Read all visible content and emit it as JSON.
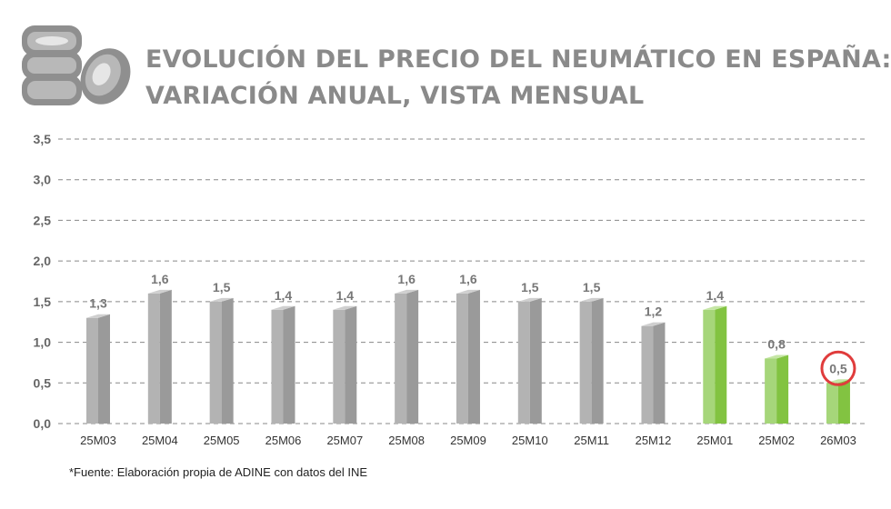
{
  "title": {
    "line1": "EVOLUCIÓN DEL PRECIO DEL NEUMÁTICO EN ESPAÑA:",
    "line2": "VARIACIÓN ANUAL, VISTA MENSUAL"
  },
  "footnote": "*Fuente: Elaboración propia de ADINE con datos del INE",
  "logo_icon": "tire-stack-icon",
  "colors": {
    "gray_front": "#b3b3b3",
    "gray_side": "#9a9a9a",
    "gray_top": "#cfcfcf",
    "green_front": "#a6d67a",
    "green_side": "#82c341",
    "green_top": "#c5e6a5",
    "axis_text": "#666666",
    "label_text": "#777777",
    "grid": "#888888",
    "highlight_circle": "#e03c3c"
  },
  "chart_data": {
    "type": "bar",
    "title": "EVOLUCIÓN DEL PRECIO DEL NEUMÁTICO EN ESPAÑA: VARIACIÓN ANUAL, VISTA MENSUAL",
    "xlabel": "",
    "ylabel": "",
    "categories": [
      "25M03",
      "25M04",
      "25M05",
      "25M06",
      "25M07",
      "25M08",
      "25M09",
      "25M10",
      "25M11",
      "25M12",
      "25M01",
      "25M02",
      "26M03"
    ],
    "values": [
      1.3,
      1.6,
      1.5,
      1.4,
      1.4,
      1.6,
      1.6,
      1.5,
      1.5,
      1.2,
      1.4,
      0.8,
      0.5
    ],
    "value_labels": [
      "1,3",
      "1,6",
      "1,5",
      "1,4",
      "1,4",
      "1,6",
      "1,6",
      "1,5",
      "1,5",
      "1,2",
      "1,4",
      "0,8",
      "0,5"
    ],
    "bar_colors": [
      "gray",
      "gray",
      "gray",
      "gray",
      "gray",
      "gray",
      "gray",
      "gray",
      "gray",
      "gray",
      "green",
      "green",
      "green"
    ],
    "highlighted_index": 12,
    "ylim": [
      0,
      3.5
    ],
    "yticks": [
      0,
      0.5,
      1.0,
      1.5,
      2.0,
      2.5,
      3.0,
      3.5
    ],
    "ytick_labels": [
      "0,0",
      "0,5",
      "1,0",
      "1,5",
      "2,0",
      "2,5",
      "3,0",
      "3,5"
    ],
    "grid": true,
    "legend": "none"
  }
}
